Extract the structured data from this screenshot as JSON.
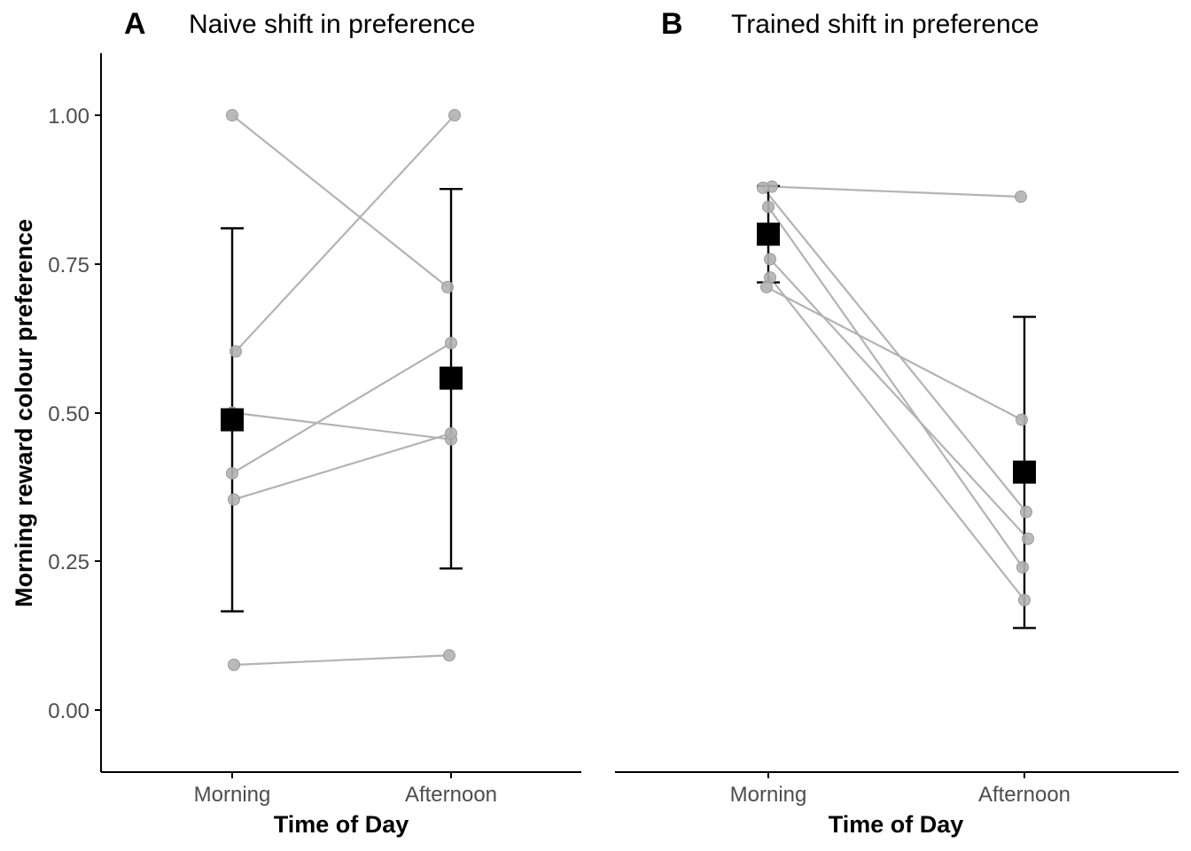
{
  "chart_data": [
    {
      "panel": "A",
      "title": "Naive shift in preference",
      "type": "scatter",
      "xlabel": "Time of Day",
      "ylabel": "Morning reward colour preference",
      "categories": [
        "Morning",
        "Afternoon"
      ],
      "ylim": [
        -0.1,
        1.1
      ],
      "yticks": [
        "0.00",
        "0.25",
        "0.50",
        "0.75",
        "1.00"
      ],
      "individuals": [
        [
          1.0,
          0.711
        ],
        [
          0.603,
          1.0
        ],
        [
          0.5,
          0.455
        ],
        [
          0.398,
          0.617
        ],
        [
          0.354,
          0.465
        ],
        [
          0.076,
          0.092
        ]
      ],
      "means": [
        0.488,
        0.558
      ],
      "errors": [
        [
          0.166,
          0.81
        ],
        [
          0.238,
          0.876
        ]
      ],
      "colors": {
        "individual": "#b3b3b3",
        "mean": "#000000"
      }
    },
    {
      "panel": "B",
      "title": "Trained shift in preference",
      "type": "scatter",
      "xlabel": "Time of Day",
      "categories": [
        "Morning",
        "Afternoon"
      ],
      "ylim": [
        -0.1,
        1.1
      ],
      "individuals": [
        [
          0.88,
          0.863
        ],
        [
          0.878,
          0.333
        ],
        [
          0.846,
          0.24
        ],
        [
          0.758,
          0.288
        ],
        [
          0.727,
          0.185
        ],
        [
          0.711,
          0.488
        ]
      ],
      "means": [
        0.8,
        0.4
      ],
      "errors": [
        [
          0.719,
          0.881
        ],
        [
          0.138,
          0.661
        ]
      ],
      "colors": {
        "individual": "#b3b3b3",
        "mean": "#000000"
      }
    }
  ]
}
